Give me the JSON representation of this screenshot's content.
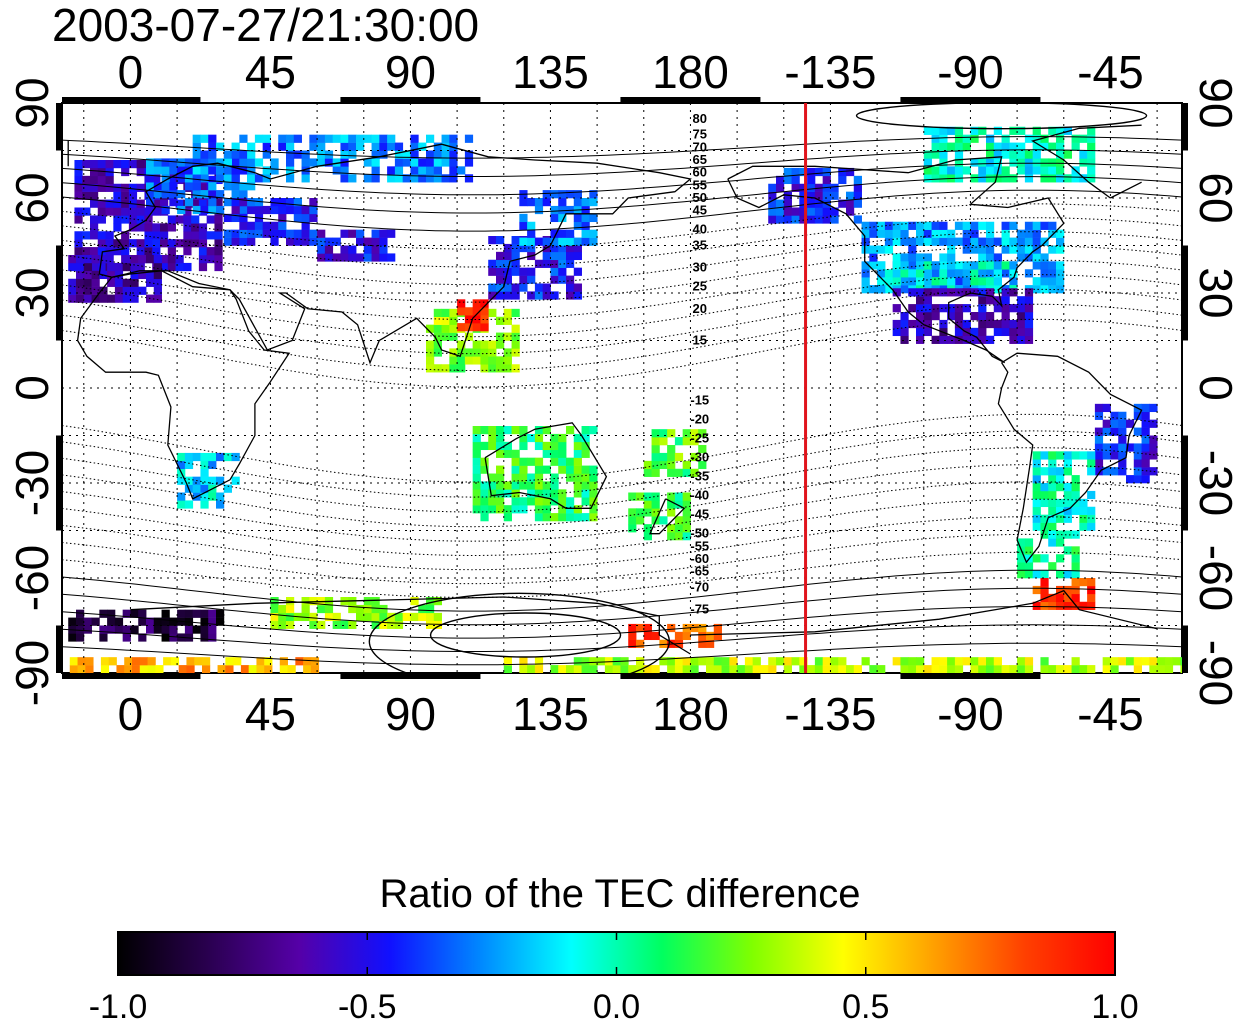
{
  "title": "2003-07-27/21:30:00",
  "chart_data": {
    "type": "heatmap",
    "projection": "equirectangular",
    "x_ticks_top": [
      "0",
      "45",
      "90",
      "135",
      "180",
      "-135",
      "-90",
      "-45"
    ],
    "x_ticks_bottom": [
      "0",
      "45",
      "90",
      "135",
      "180",
      "-135",
      "-90",
      "-45"
    ],
    "x_tick_values": [
      0,
      45,
      90,
      135,
      180,
      225,
      270,
      315
    ],
    "y_ticks_left": [
      "90",
      "60",
      "30",
      "0",
      "-30",
      "-60",
      "-90"
    ],
    "y_ticks_right": [
      "90",
      "60",
      "30",
      "0",
      "-30",
      "-60",
      "-90"
    ],
    "y_tick_values": [
      90,
      60,
      30,
      0,
      -30,
      -60,
      -90
    ],
    "xlim": [
      -22,
      338
    ],
    "ylim": [
      -90,
      90
    ],
    "grid": true,
    "marker_longitude": 217,
    "marker_color": "#e0141c",
    "contour_labels_north": [
      "80",
      "75",
      "70",
      "65",
      "60",
      "55",
      "50",
      "45",
      "40",
      "35",
      "30",
      "25",
      "20",
      "15"
    ],
    "contour_label_lat_north": [
      85,
      80,
      76,
      72,
      68,
      64,
      60,
      56,
      50,
      45,
      38,
      32,
      25,
      15
    ],
    "contour_labels_south": [
      "-15",
      "-20",
      "-25",
      "-30",
      "-35",
      "-40",
      "-45",
      "-50",
      "-55",
      "-60",
      "-65",
      "-70",
      "-75"
    ],
    "contour_label_lat_south": [
      -4,
      -10,
      -16,
      -22,
      -28,
      -34,
      -40,
      -46,
      -50,
      -54,
      -58,
      -63,
      -70
    ],
    "contour_label_lon": 183,
    "colorbar": {
      "label": "Ratio of the TEC difference",
      "min": -1.0,
      "max": 1.0,
      "tick_labels": [
        "-1.0",
        "-0.5",
        "0.0",
        "0.5",
        "1.0"
      ],
      "tick_values": [
        -1.0,
        -0.5,
        0.0,
        0.5,
        1.0
      ],
      "colors": [
        "#000000",
        "#2a0050",
        "#5500a8",
        "#1010ff",
        "#0088ff",
        "#00ffff",
        "#00ff60",
        "#80ff00",
        "#ffff00",
        "#ffa000",
        "#ff4000",
        "#ff0000"
      ]
    },
    "data_regions": [
      {
        "lon0": -18,
        "lon1": 28,
        "lat0": 37,
        "lat1": 70,
        "value": -0.58
      },
      {
        "lon0": 5,
        "lon1": 40,
        "lat0": 55,
        "lat1": 72,
        "value": -0.35
      },
      {
        "lon0": -20,
        "lon1": 10,
        "lat0": 27,
        "lat1": 40,
        "value": -0.62
      },
      {
        "lon0": 30,
        "lon1": 60,
        "lat0": 45,
        "lat1": 60,
        "value": -0.45
      },
      {
        "lon0": 60,
        "lon1": 85,
        "lat0": 40,
        "lat1": 48,
        "value": -0.5
      },
      {
        "lon0": 20,
        "lon1": 110,
        "lat0": 65,
        "lat1": 78,
        "value": -0.28
      },
      {
        "lon0": 115,
        "lon1": 145,
        "lat0": 28,
        "lat1": 48,
        "value": -0.45
      },
      {
        "lon0": 125,
        "lon1": 150,
        "lat0": 45,
        "lat1": 62,
        "value": -0.3
      },
      {
        "lon0": 205,
        "lon1": 235,
        "lat0": 52,
        "lat1": 68,
        "value": -0.45
      },
      {
        "lon0": 235,
        "lon1": 300,
        "lat0": 30,
        "lat1": 52,
        "value": -0.25
      },
      {
        "lon0": 240,
        "lon1": 285,
        "lat0": 30,
        "lat1": 40,
        "value": -0.1
      },
      {
        "lon0": 245,
        "lon1": 290,
        "lat0": 14,
        "lat1": 30,
        "value": -0.6
      },
      {
        "lon0": 255,
        "lon1": 310,
        "lat0": 65,
        "lat1": 82,
        "value": -0.05
      },
      {
        "lon0": 310,
        "lon1": 330,
        "lat0": -30,
        "lat1": -5,
        "value": -0.45
      },
      {
        "lon0": 290,
        "lon1": 310,
        "lat0": -45,
        "lat1": -20,
        "value": -0.05
      },
      {
        "lon0": 285,
        "lon1": 305,
        "lat0": -60,
        "lat1": -45,
        "value": 0.0
      },
      {
        "lon0": 290,
        "lon1": 310,
        "lat0": -70,
        "lat1": -62,
        "value": 0.85
      },
      {
        "lon0": 15,
        "lon1": 35,
        "lat0": -38,
        "lat1": -22,
        "value": -0.15
      },
      {
        "lon0": 110,
        "lon1": 150,
        "lat0": -42,
        "lat1": -12,
        "value": 0.12
      },
      {
        "lon0": 160,
        "lon1": 180,
        "lat0": -48,
        "lat1": -35,
        "value": 0.15
      },
      {
        "lon0": 165,
        "lon1": 185,
        "lat0": -28,
        "lat1": -15,
        "value": 0.2
      },
      {
        "lon0": 95,
        "lon1": 125,
        "lat0": 5,
        "lat1": 25,
        "value": 0.3
      },
      {
        "lon0": 105,
        "lon1": 115,
        "lat0": 18,
        "lat1": 26,
        "value": 0.95
      },
      {
        "lon0": -20,
        "lon1": 30,
        "lat0": -80,
        "lat1": -72,
        "value": -0.85
      },
      {
        "lon0": 45,
        "lon1": 100,
        "lat0": -76,
        "lat1": -68,
        "value": 0.3
      },
      {
        "lon0": 160,
        "lon1": 190,
        "lat0": -82,
        "lat1": -75,
        "value": 0.8
      },
      {
        "lon0": -22,
        "lon1": 60,
        "lat0": -90,
        "lat1": -86,
        "value": 0.6
      },
      {
        "lon0": 120,
        "lon1": 338,
        "lat0": -90,
        "lat1": -86,
        "value": 0.35
      }
    ]
  }
}
